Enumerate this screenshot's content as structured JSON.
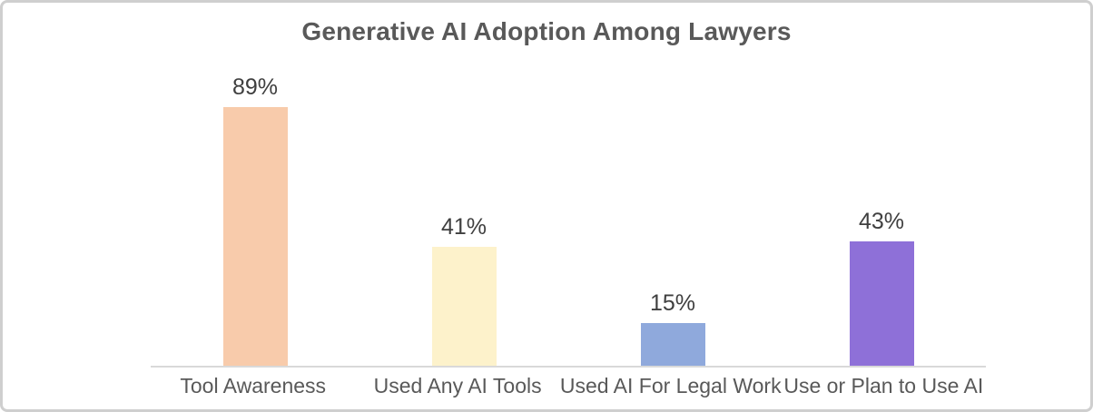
{
  "chart_data": {
    "type": "bar",
    "title": "Generative AI Adoption Among Lawyers",
    "categories": [
      "Tool Awareness",
      "Used Any AI Tools",
      "Used AI For Legal Work",
      "Use or Plan to Use AI"
    ],
    "values": [
      89,
      41,
      15,
      43
    ],
    "value_labels": [
      "89%",
      "41%",
      "15%",
      "43%"
    ],
    "bar_colors": [
      "#F8CBAB",
      "#FDF2CB",
      "#8FA9DC",
      "#8E70D8"
    ],
    "xlabel": "",
    "ylabel": "",
    "ylim": [
      0,
      100
    ],
    "grid": false,
    "legend": false,
    "axis_line_color": "#d9d9d9",
    "title_color": "#595959",
    "label_color": "#3f3f3f"
  }
}
